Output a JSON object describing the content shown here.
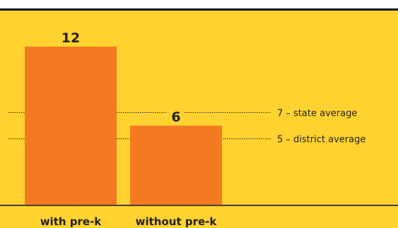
{
  "colors": {
    "background": "#ffd230",
    "bar": "#f47a22",
    "text": "#222222",
    "rule": "#111111"
  },
  "chart_data": {
    "type": "bar",
    "categories": [
      "with pre-k",
      "without pre-k"
    ],
    "values": [
      12,
      6
    ],
    "data_labels": [
      "12",
      "6"
    ],
    "reference_lines": [
      {
        "value": 7,
        "label": "7 – state average"
      },
      {
        "value": 5,
        "label": "5 – district average"
      }
    ],
    "ylim": [
      0,
      13
    ],
    "grid": false,
    "legend": "none",
    "title": "",
    "xlabel": "",
    "ylabel": ""
  }
}
